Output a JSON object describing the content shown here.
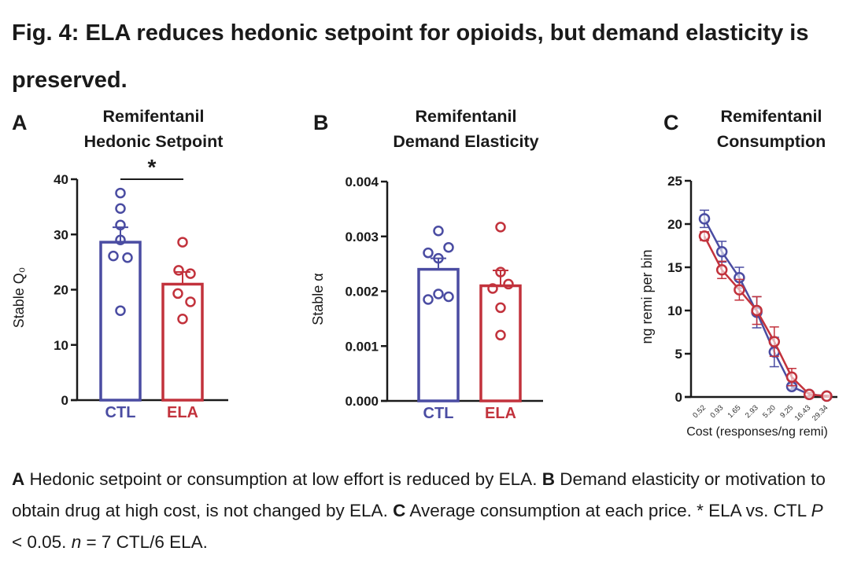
{
  "figure_title": "Fig. 4: ELA reduces hedonic setpoint for opioids, but demand elasticity is preserved.",
  "colors": {
    "CTL": "#4a4ca2",
    "ELA": "#c2323c",
    "axis": "#1a1a1a"
  },
  "caption": [
    {
      "text": "A",
      "bold": true
    },
    {
      "text": " Hedonic setpoint or consumption at low effort is reduced by ELA. "
    },
    {
      "text": "B",
      "bold": true
    },
    {
      "text": " Demand elasticity or motivation to obtain drug at high cost, is not changed by ELA. "
    },
    {
      "text": "C",
      "bold": true
    },
    {
      "text": " Average consumption at each price. * ELA vs. CTL "
    },
    {
      "text": "P",
      "italic": true
    },
    {
      "text": " < 0.05. "
    },
    {
      "text": "n",
      "italic": true
    },
    {
      "text": " = 7 CTL/6 ELA."
    }
  ],
  "chart_data": [
    {
      "panel": "A",
      "type": "bar",
      "title": [
        "Remifentanil",
        "Hedonic Setpoint"
      ],
      "ylabel": "Stable Q₀",
      "ylim": [
        0,
        40
      ],
      "yticks": [
        "0",
        "10",
        "20",
        "30",
        "40"
      ],
      "categories": [
        "CTL",
        "ELA"
      ],
      "values": [
        28.6,
        21.0
      ],
      "sem_upper": [
        31.3,
        23.2
      ],
      "points": [
        [
          37.5,
          34.7,
          31.7,
          29.0,
          26.1,
          25.8,
          16.2
        ],
        [
          28.6,
          23.5,
          22.9,
          19.3,
          17.8,
          14.7
        ]
      ],
      "significance": "*"
    },
    {
      "panel": "B",
      "type": "bar",
      "title": [
        "Remifentanil",
        "Demand Elasticity"
      ],
      "ylabel": "Stable α",
      "ylim": [
        0,
        0.004
      ],
      "yticks": [
        "0.000",
        "0.001",
        "0.002",
        "0.003",
        "0.004"
      ],
      "categories": [
        "CTL",
        "ELA"
      ],
      "values": [
        0.0024,
        0.0021
      ],
      "sem_upper": [
        0.0026,
        0.00238
      ],
      "points": [
        [
          0.0031,
          0.0027,
          0.0026,
          0.0028,
          0.00185,
          0.00195,
          0.0019
        ],
        [
          0.00317,
          0.00235,
          0.00205,
          0.00213,
          0.0017,
          0.0012
        ]
      ]
    },
    {
      "panel": "C",
      "type": "line",
      "title": [
        "Remifentanil",
        "Consumption"
      ],
      "ylabel": "ng remi per bin",
      "xlabel": "Cost (responses/ng remi)",
      "ylim": [
        0,
        25
      ],
      "yticks": [
        "0",
        "5",
        "10",
        "15",
        "20",
        "25"
      ],
      "categories": [
        "0.52",
        "0.93",
        "1.65",
        "2.93",
        "5.20",
        "9.25",
        "16.43",
        "29.34"
      ],
      "series": [
        {
          "group": "CTL",
          "values": [
            20.6,
            16.8,
            13.8,
            9.8,
            5.2,
            1.2,
            0.3,
            0.1
          ],
          "sem": [
            1.0,
            1.2,
            1.2,
            1.8,
            1.7,
            0.3,
            0.2,
            0.1
          ]
        },
        {
          "group": "ELA",
          "values": [
            18.6,
            14.7,
            12.4,
            10.0,
            6.4,
            2.3,
            0.3,
            0.1
          ],
          "sem": [
            0.5,
            1.0,
            1.2,
            1.6,
            1.7,
            1.0,
            0.2,
            0.1
          ]
        }
      ]
    }
  ]
}
